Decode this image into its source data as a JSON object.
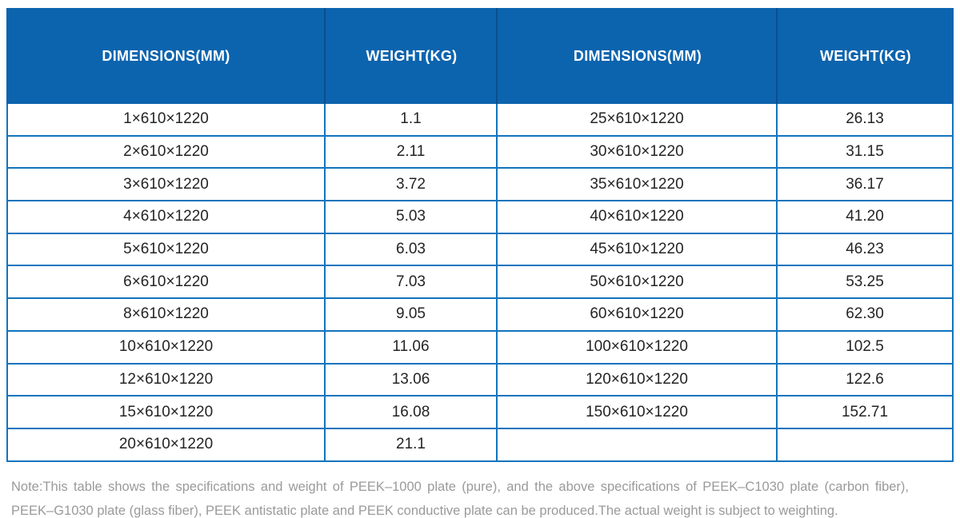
{
  "colors": {
    "header_bg": "#0c64ae",
    "header_separator": "#0a4e8c",
    "grid_border": "#1274bd",
    "body_text": "#242424",
    "note_text": "#9a9a9a"
  },
  "header": {
    "columns": [
      "DIMENSIONS(MM)",
      "WEIGHT(KG)",
      "DIMENSIONS(MM)",
      "WEIGHT(KG)"
    ]
  },
  "table": {
    "rows": [
      [
        "1×610×1220",
        "1.1",
        "25×610×1220",
        "26.13"
      ],
      [
        "2×610×1220",
        "2.11",
        "30×610×1220",
        "31.15"
      ],
      [
        "3×610×1220",
        "3.72",
        "35×610×1220",
        "36.17"
      ],
      [
        "4×610×1220",
        "5.03",
        "40×610×1220",
        "41.20"
      ],
      [
        "5×610×1220",
        "6.03",
        "45×610×1220",
        "46.23"
      ],
      [
        "6×610×1220",
        "7.03",
        "50×610×1220",
        "53.25"
      ],
      [
        "8×610×1220",
        "9.05",
        "60×610×1220",
        "62.30"
      ],
      [
        "10×610×1220",
        "11.06",
        "100×610×1220",
        "102.5"
      ],
      [
        "12×610×1220",
        "13.06",
        "120×610×1220",
        "122.6"
      ],
      [
        "15×610×1220",
        "16.08",
        "150×610×1220",
        "152.71"
      ],
      [
        "20×610×1220",
        "21.1",
        "",
        ""
      ]
    ]
  },
  "note": {
    "text": "Note:This table shows the specifications and weight of PEEK–1000 plate (pure), and the above specifications of PEEK–C1030 plate (carbon fiber), PEEK–G1030 plate (glass fiber), PEEK antistatic plate and PEEK conductive plate can be produced.The actual weight is subject to weighting."
  }
}
